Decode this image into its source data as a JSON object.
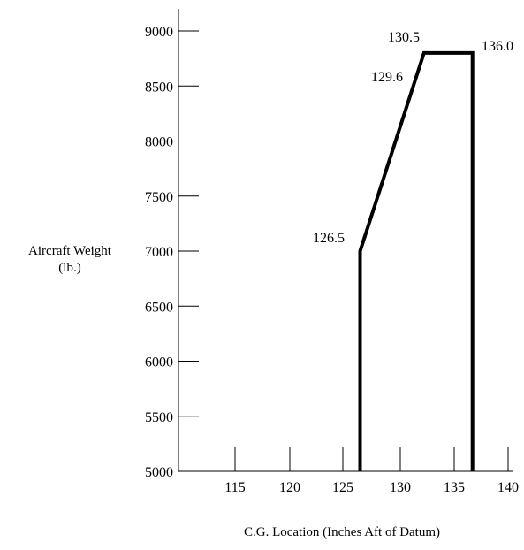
{
  "chart_data": {
    "type": "line",
    "xlabel": "C.G. Location (Inches Aft of Datum)",
    "ylabel_lines": [
      "Aircraft Weight",
      "(lb.)"
    ],
    "xlim": [
      110,
      140
    ],
    "ylim": [
      5000,
      9000
    ],
    "x_ticks": [
      115,
      120,
      125,
      130,
      135,
      140
    ],
    "x_tick_labels": [
      "115",
      "120",
      "125",
      "130",
      "135",
      "140"
    ],
    "y_ticks": [
      9000,
      8500,
      8000,
      7500,
      7000,
      6500,
      6000,
      5500,
      5000
    ],
    "y_tick_labels": [
      "9000",
      "8500",
      "8000",
      "7500",
      "7000",
      "6500",
      "6000",
      "5500",
      "5000"
    ],
    "series": [
      {
        "points": [
          {
            "x": 126.5,
            "y": 5000
          },
          {
            "x": 126.5,
            "y": 7000
          },
          {
            "x": 132.2,
            "y": 8800
          },
          {
            "x": 136.7,
            "y": 8800
          },
          {
            "x": 136.7,
            "y": 5000
          }
        ]
      }
    ],
    "annotations": [
      {
        "text": "126.5"
      },
      {
        "text": "129.6"
      },
      {
        "text": "130.5"
      },
      {
        "text": "136.0"
      }
    ],
    "grid": false,
    "line_color": "#000000"
  }
}
